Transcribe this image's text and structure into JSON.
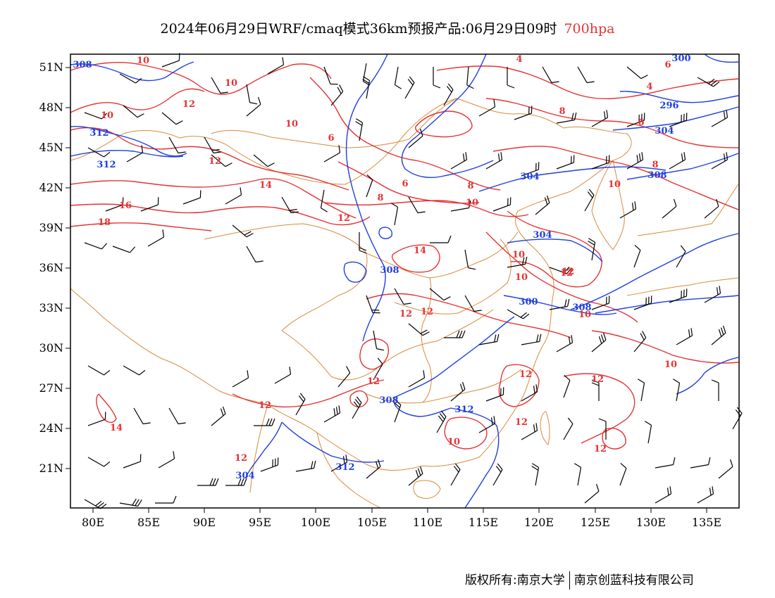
{
  "title": {
    "main": "2024年06月29日WRF/cmaq模式36km预报产品:06月29日09时",
    "level": "700hpa"
  },
  "colors": {
    "temperature": "#e53333",
    "geopotential": "#1f3fe0",
    "boundary": "#d98a3a",
    "wind": "#000000",
    "frame": "#000000"
  },
  "axes": {
    "lon_ticks": [
      "80E",
      "85E",
      "90E",
      "95E",
      "100E",
      "105E",
      "110E",
      "115E",
      "120E",
      "125E",
      "130E",
      "135E"
    ],
    "lat_ticks": [
      "51N",
      "48N",
      "45N",
      "42N",
      "39N",
      "36N",
      "33N",
      "30N",
      "27N",
      "24N",
      "21N"
    ]
  },
  "layers": {
    "temperature_contour_labels": [
      "10",
      "10",
      "10",
      "12",
      "10",
      "6",
      "12",
      "14",
      "16",
      "18",
      "12",
      "14",
      "12",
      "12",
      "12",
      "12",
      "14",
      "12",
      "12",
      "12",
      "10",
      "10",
      "12",
      "10",
      "8",
      "4",
      "4",
      "6",
      "6",
      "8",
      "6",
      "8",
      "10",
      "8",
      "10",
      "10",
      "10",
      "12",
      "12",
      "12"
    ],
    "height_contour_labels": [
      "308",
      "312",
      "312",
      "308",
      "308",
      "312",
      "312",
      "304",
      "304",
      "304",
      "300",
      "296",
      "300",
      "304",
      "308",
      "308"
    ]
  },
  "copyright": {
    "left": "版权所有:南京大学",
    "right": "南京创蓝科技有限公司"
  }
}
